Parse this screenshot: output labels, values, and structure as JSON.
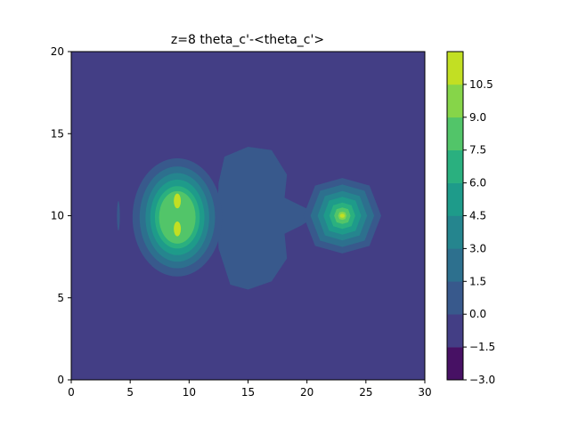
{
  "chart_data": {
    "type": "contourf",
    "title": "z=8 theta_c'-<theta_c'>",
    "xlabel": "",
    "ylabel": "",
    "xlim": [
      0,
      30
    ],
    "ylim": [
      0,
      20
    ],
    "x_ticks": [
      "0",
      "5",
      "10",
      "15",
      "20",
      "25",
      "30"
    ],
    "y_ticks": [
      "0",
      "5",
      "10",
      "15",
      "20"
    ],
    "colorbar": {
      "levels": [
        -3.0,
        -1.5,
        0.0,
        1.5,
        3.0,
        4.5,
        6.0,
        7.5,
        9.0,
        10.5
      ],
      "tick_labels": [
        "−3.0",
        "−1.5",
        "0.0",
        "1.5",
        "3.0",
        "4.5",
        "6.0",
        "7.5",
        "9.0",
        "10.5"
      ],
      "colors": [
        "#471164",
        "#433e85",
        "#38598c",
        "#2d708e",
        "#25858e",
        "#1e9b8a",
        "#2ab07f",
        "#52c569",
        "#86d549"
      ],
      "top_color": "#c2df23"
    },
    "background_level": "-1.5 to 0.0",
    "features": [
      {
        "name": "left blob",
        "center": [
          9,
          10
        ],
        "peak_range": "9.0 to 10.5",
        "outer_x": [
          5.2,
          13.0
        ],
        "outer_y": [
          5.9,
          13.5
        ]
      },
      {
        "name": "middle plateau",
        "outer_x": [
          12.5,
          18.3
        ],
        "outer_y": [
          5.5,
          14.2
        ],
        "level": "0.0 to 1.5"
      },
      {
        "name": "right blob",
        "center": [
          23,
          10
        ],
        "peak_range": "9.0 to 10.5",
        "outer_x": [
          20.0,
          26.3
        ],
        "outer_y": [
          7.9,
          12.3
        ]
      }
    ]
  }
}
